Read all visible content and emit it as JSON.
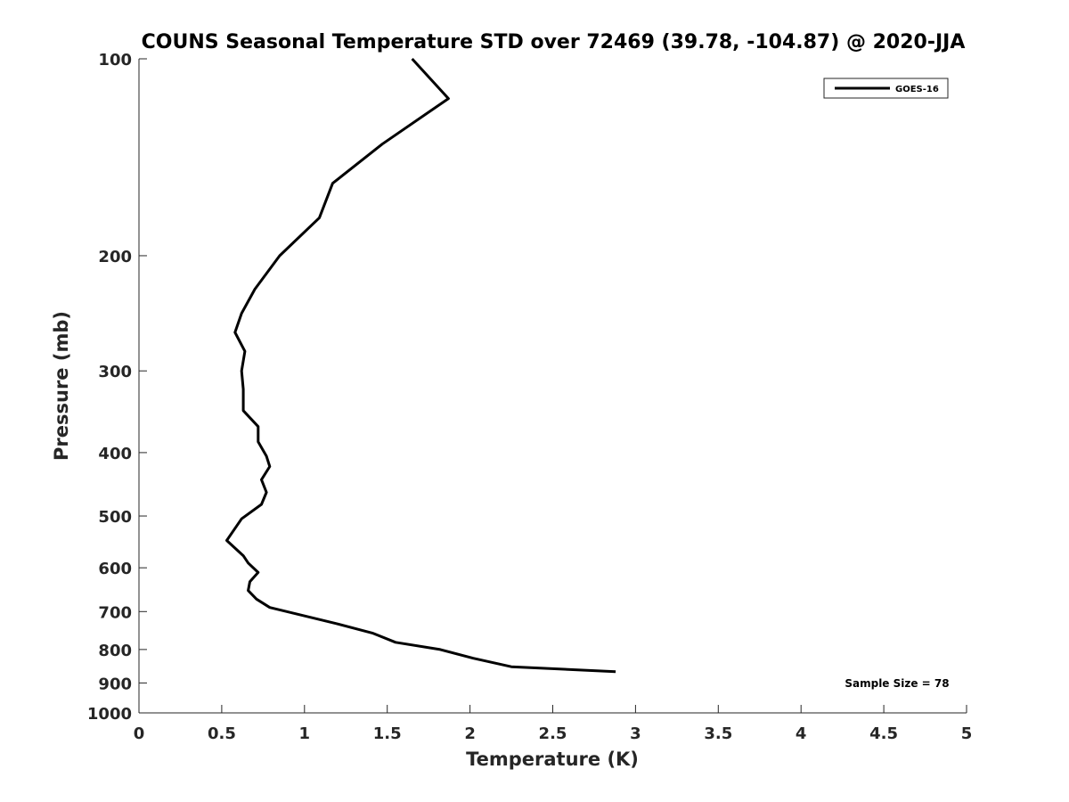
{
  "chart_data": {
    "type": "line",
    "title": "COUNS Seasonal Temperature STD over 72469 (39.78, -104.87) @ 2020-JJA",
    "xlabel": "Temperature (K)",
    "ylabel": "Pressure (mb)",
    "xlim": [
      0,
      5
    ],
    "ylim": [
      1000,
      100
    ],
    "y_scale": "log",
    "y_reversed": true,
    "x_ticks": [
      "0",
      "0.5",
      "1",
      "1.5",
      "2",
      "2.5",
      "3",
      "3.5",
      "4",
      "4.5",
      "5"
    ],
    "x_tick_values": [
      0,
      0.5,
      1,
      1.5,
      2,
      2.5,
      3,
      3.5,
      4,
      4.5,
      5
    ],
    "y_ticks": [
      "100",
      "200",
      "300",
      "400",
      "500",
      "600",
      "700",
      "800",
      "900",
      "1000"
    ],
    "y_tick_values": [
      100,
      200,
      300,
      400,
      500,
      600,
      700,
      800,
      900,
      1000
    ],
    "grid": false,
    "legend_position": "top-right",
    "annotation": "Sample Size = 78",
    "series": [
      {
        "name": "GOES-16",
        "color": "#000000",
        "points": [
          [
            1.65,
            100
          ],
          [
            1.87,
            115
          ],
          [
            1.47,
            135
          ],
          [
            1.17,
            155
          ],
          [
            1.09,
            175
          ],
          [
            0.85,
            200
          ],
          [
            0.7,
            225
          ],
          [
            0.62,
            245
          ],
          [
            0.58,
            262
          ],
          [
            0.64,
            280
          ],
          [
            0.62,
            300
          ],
          [
            0.63,
            320
          ],
          [
            0.63,
            345
          ],
          [
            0.72,
            365
          ],
          [
            0.72,
            385
          ],
          [
            0.77,
            405
          ],
          [
            0.79,
            420
          ],
          [
            0.74,
            440
          ],
          [
            0.77,
            460
          ],
          [
            0.74,
            480
          ],
          [
            0.62,
            505
          ],
          [
            0.53,
            545
          ],
          [
            0.63,
            575
          ],
          [
            0.66,
            590
          ],
          [
            0.72,
            610
          ],
          [
            0.67,
            630
          ],
          [
            0.66,
            650
          ],
          [
            0.71,
            670
          ],
          [
            0.79,
            690
          ],
          [
            1.19,
            730
          ],
          [
            1.41,
            755
          ],
          [
            1.55,
            780
          ],
          [
            1.82,
            800
          ],
          [
            2.02,
            825
          ],
          [
            2.25,
            850
          ],
          [
            2.88,
            865
          ]
        ]
      }
    ]
  }
}
